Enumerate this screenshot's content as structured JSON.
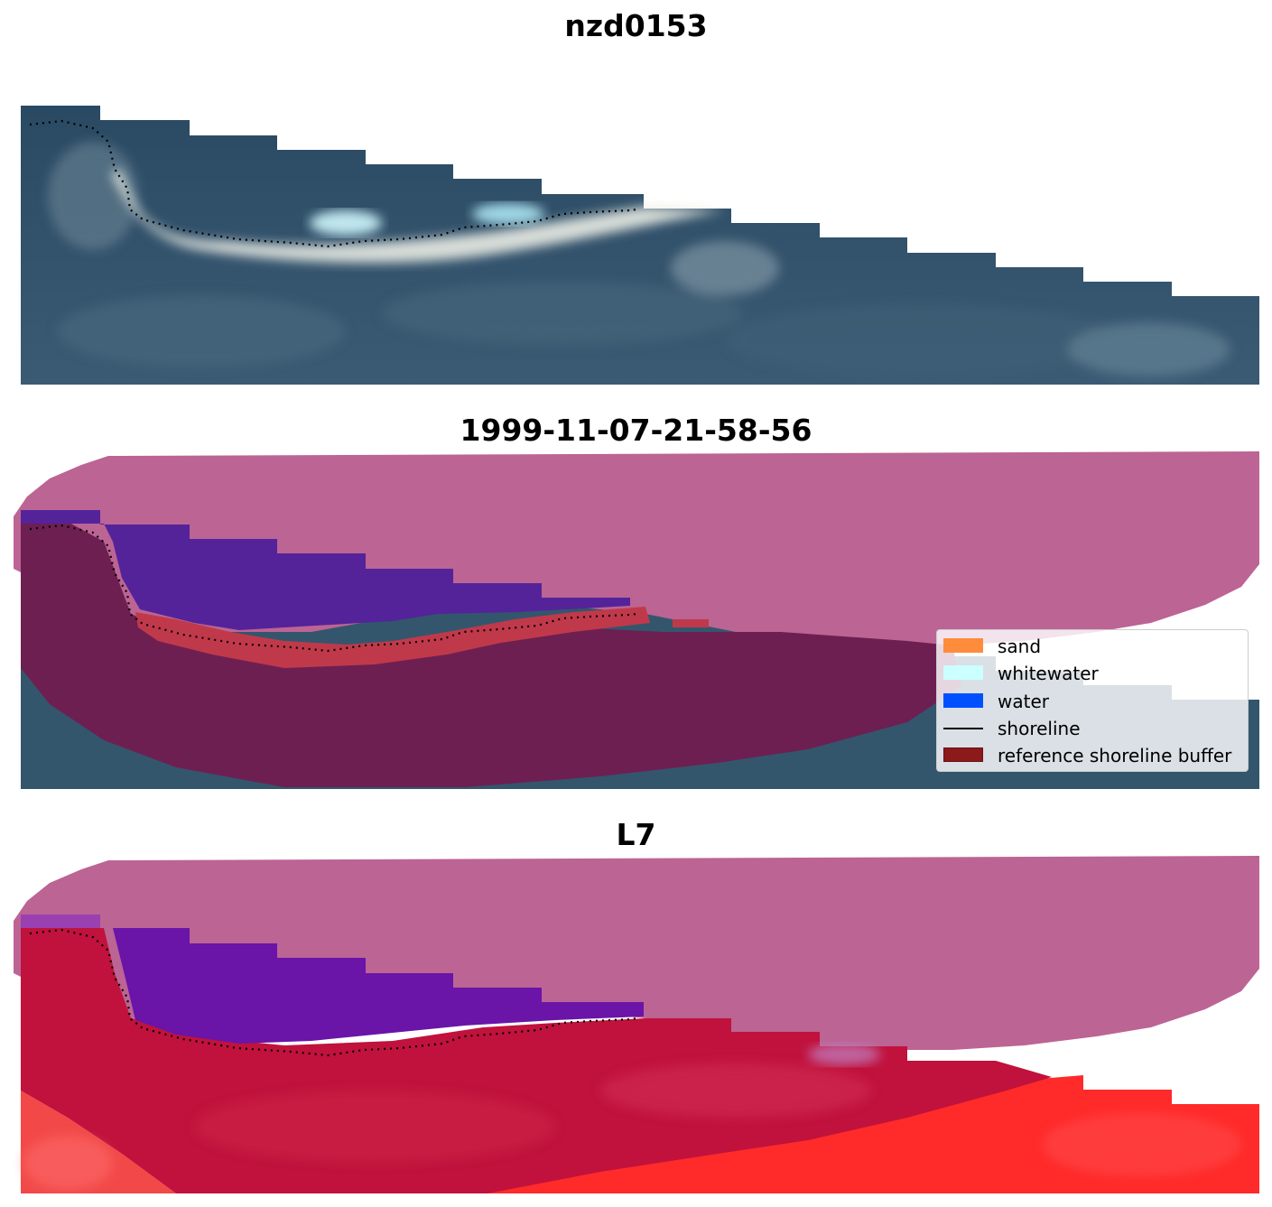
{
  "panels": [
    {
      "title": "nzd0153",
      "kind": "rgb-image"
    },
    {
      "title": "1999-11-07-21-58-56",
      "kind": "classification-overlay"
    },
    {
      "title": "L7",
      "kind": "index-overlay"
    }
  ],
  "legend": {
    "items": [
      {
        "label": "sand",
        "color": "#ff8c3c",
        "shape": "patch"
      },
      {
        "label": "whitewater",
        "color": "#ccffff",
        "shape": "patch"
      },
      {
        "label": "water",
        "color": "#0050ff",
        "shape": "patch"
      },
      {
        "label": "shoreline",
        "color": "#000000",
        "shape": "line"
      },
      {
        "label": "reference shoreline buffer",
        "color": "#8b1a1a",
        "shape": "patch"
      }
    ]
  },
  "colors": {
    "ocean": "#2f4f68",
    "land": "#3a5872",
    "surf": "#e8eee8",
    "buffer": "#b9608f",
    "land_overlay": "#6e1f52",
    "water_class": "#54239a",
    "sand_class": "#c0394a",
    "index_red": "#c0123c",
    "index_bright": "#ff2222",
    "index_purple": "#6a14a8",
    "shoreline": "#000000"
  }
}
